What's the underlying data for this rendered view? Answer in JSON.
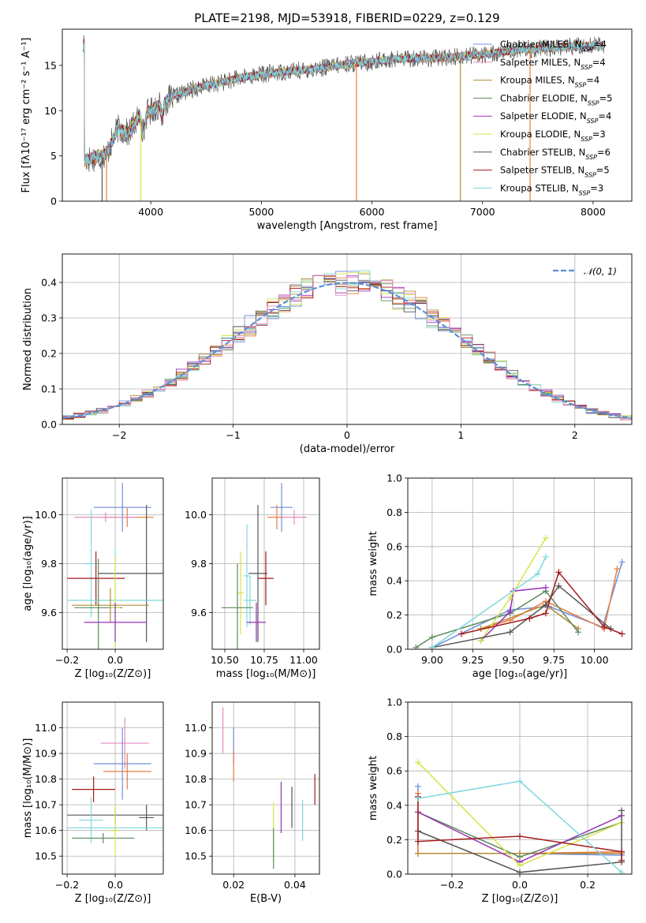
{
  "title": "PLATE=2198, MJD=53918, FIBERID=0229, z=0.129",
  "colors": {
    "chabrier_miles": "#6f8fdc",
    "salpeter_miles": "#e87d3e",
    "kroupa_miles": "#b48a36",
    "chabrier_elodie": "#5c8a5c",
    "salpeter_elodie": "#9b30b8",
    "kroupa_elodie": "#d7e34a",
    "chabrier_stelib": "#555555",
    "salpeter_stelib": "#a31b1b",
    "kroupa_stelib": "#7fd8dc",
    "pink": "#e58cc0",
    "normal": "#5b8fd6",
    "grid": "#b0b0b0"
  },
  "chart_data": [
    {
      "type": "line",
      "id": "spectrum",
      "xlabel": "wavelength [Angstrom, rest frame]",
      "ylabel": "Flux [fλ10⁻¹⁷ erg cm⁻² s⁻¹ A⁻¹]",
      "xlim": [
        3200,
        8350
      ],
      "ylim": [
        0,
        19
      ],
      "xticks": [
        "4000",
        "5000",
        "6000",
        "7000",
        "8000"
      ],
      "yticks": [
        "0",
        "5",
        "10",
        "15"
      ],
      "grid": false,
      "legend_position": "top-right",
      "continuum_points": [
        [
          3400,
          4.5
        ],
        [
          3600,
          5.2
        ],
        [
          3700,
          8.0
        ],
        [
          3800,
          7.5
        ],
        [
          3900,
          9.5
        ],
        [
          4000,
          10.0
        ],
        [
          4200,
          11.5
        ],
        [
          4400,
          12.5
        ],
        [
          4600,
          13.0
        ],
        [
          4800,
          13.6
        ],
        [
          5000,
          14.0
        ],
        [
          5200,
          14.3
        ],
        [
          5400,
          14.5
        ],
        [
          5600,
          14.8
        ],
        [
          5800,
          15.2
        ],
        [
          6000,
          15.4
        ],
        [
          6200,
          15.7
        ],
        [
          6400,
          15.8
        ],
        [
          6600,
          15.8
        ],
        [
          6800,
          16.0
        ],
        [
          7000,
          16.2
        ],
        [
          7200,
          16.5
        ],
        [
          7400,
          16.8
        ],
        [
          7600,
          16.9
        ],
        [
          7800,
          17.1
        ],
        [
          8000,
          17.2
        ],
        [
          8100,
          17.3
        ]
      ],
      "legend": [
        {
          "label": "Chabrier MILES, N",
          "sub": "SSP",
          "tail": "=4",
          "color_key": "chabrier_miles"
        },
        {
          "label": "Salpeter MILES, N",
          "sub": "SSP",
          "tail": "=4",
          "color_key": "pink"
        },
        {
          "label": "Kroupa MILES, N",
          "sub": "SSP",
          "tail": "=4",
          "color_key": "kroupa_miles"
        },
        {
          "label": "Chabrier ELODIE, N",
          "sub": "SSP",
          "tail": "=5",
          "color_key": "chabrier_elodie"
        },
        {
          "label": "Salpeter ELODIE, N",
          "sub": "SSP",
          "tail": "=4",
          "color_key": "salpeter_elodie"
        },
        {
          "label": "Kroupa ELODIE, N",
          "sub": "SSP",
          "tail": "=3",
          "color_key": "kroupa_elodie"
        },
        {
          "label": "Chabrier STELIB, N",
          "sub": "SSP",
          "tail": "=6",
          "color_key": "chabrier_stelib"
        },
        {
          "label": "Salpeter STELIB, N",
          "sub": "SSP",
          "tail": "=5",
          "color_key": "salpeter_stelib"
        },
        {
          "label": "Kroupa STELIB, N",
          "sub": "SSP",
          "tail": "=3",
          "color_key": "kroupa_stelib"
        }
      ]
    },
    {
      "type": "histogram",
      "id": "residuals",
      "xlabel": "(data-model)/error",
      "ylabel": "Normed distribution",
      "xlim": [
        -2.5,
        2.5
      ],
      "ylim": [
        0,
        0.48
      ],
      "xticks": [
        "−2",
        "−1",
        "0",
        "1",
        "2"
      ],
      "yticks": [
        "0.0",
        "0.1",
        "0.2",
        "0.3",
        "0.4"
      ],
      "grid": true,
      "bin_width": 0.1,
      "legend_label": "𝒩(0, 1)",
      "legend_position": "top-right"
    },
    {
      "type": "errorbar",
      "id": "age_vs_z",
      "xlabel": "Z [log₁₀(Z/Z⊙)]",
      "ylabel": "age  [log₁₀(age/yr)]",
      "xlim": [
        -0.22,
        0.2
      ],
      "ylim": [
        9.45,
        10.15
      ],
      "xticks": [
        "−0.2",
        "0.0"
      ],
      "yticks": [
        "9.6",
        "9.8",
        "10.0"
      ],
      "grid": true,
      "points": [
        {
          "x": 0.03,
          "xerr": 0.12,
          "y": 10.03,
          "yerr": 0.1,
          "color_key": "chabrier_miles"
        },
        {
          "x": 0.05,
          "xerr": 0.11,
          "y": 9.99,
          "yerr": 0.04,
          "color_key": "salpeter_miles"
        },
        {
          "x": -0.04,
          "xerr": 0.13,
          "y": 9.99,
          "yerr": 0.02,
          "color_key": "pink"
        },
        {
          "x": -0.1,
          "xerr": 0.03,
          "y": 9.8,
          "yerr": 0.22,
          "color_key": "kroupa_stelib"
        },
        {
          "x": 0.13,
          "xerr": 0.2,
          "y": 9.76,
          "yerr": 0.28,
          "color_key": "chabrier_stelib"
        },
        {
          "x": -0.08,
          "xerr": 0.12,
          "y": 9.74,
          "yerr": 0.11,
          "color_key": "salpeter_stelib"
        },
        {
          "x": 0.0,
          "xerr": 0.2,
          "y": 9.65,
          "yerr": 0.21,
          "color_key": "kroupa_stelib"
        },
        {
          "x": -0.02,
          "xerr": 0.16,
          "y": 9.63,
          "yerr": 0.07,
          "color_key": "kroupa_miles"
        },
        {
          "x": -0.07,
          "xerr": 0.1,
          "y": 9.62,
          "yerr": 0.2,
          "color_key": "chabrier_elodie"
        },
        {
          "x": 0.0,
          "xerr": 0.02,
          "y": 9.62,
          "yerr": 0.21,
          "color_key": "kroupa_elodie"
        },
        {
          "x": 0.0,
          "xerr": 0.13,
          "y": 9.56,
          "yerr": 0.08,
          "color_key": "salpeter_elodie"
        }
      ]
    },
    {
      "type": "errorbar",
      "id": "age_vs_mass",
      "xlabel": "mass [log₁₀(M/M⊙)]",
      "ylabel": "",
      "xlim": [
        10.42,
        11.1
      ],
      "ylim": [
        9.45,
        10.15
      ],
      "xticks": [
        "10.50",
        "10.75",
        "11.00"
      ],
      "yticks": [
        "9.6",
        "9.8",
        "10.0"
      ],
      "grid": true,
      "points": [
        {
          "x": 10.86,
          "xerr": 0.07,
          "y": 10.03,
          "yerr": 0.1,
          "color_key": "chabrier_miles"
        },
        {
          "x": 10.83,
          "xerr": 0.06,
          "y": 9.99,
          "yerr": 0.05,
          "color_key": "salpeter_miles"
        },
        {
          "x": 10.94,
          "xerr": 0.08,
          "y": 9.99,
          "yerr": 0.03,
          "color_key": "pink"
        },
        {
          "x": 10.71,
          "xerr": 0.06,
          "y": 9.76,
          "yerr": 0.28,
          "color_key": "chabrier_stelib"
        },
        {
          "x": 10.76,
          "xerr": 0.05,
          "y": 9.74,
          "yerr": 0.11,
          "color_key": "salpeter_stelib"
        },
        {
          "x": 10.64,
          "xerr": 0.02,
          "y": 9.75,
          "yerr": 0.21,
          "color_key": "kroupa_stelib"
        },
        {
          "x": 10.66,
          "xerr": 0.04,
          "y": 9.65,
          "yerr": 0.1,
          "color_key": "kroupa_stelib"
        },
        {
          "x": 10.6,
          "xerr": 0.02,
          "y": 9.68,
          "yerr": 0.17,
          "color_key": "kroupa_elodie"
        },
        {
          "x": 10.58,
          "xerr": 0.1,
          "y": 9.62,
          "yerr": 0.18,
          "color_key": "chabrier_elodie"
        },
        {
          "x": 10.7,
          "xerr": 0.06,
          "y": 9.56,
          "yerr": 0.08,
          "color_key": "salpeter_elodie"
        }
      ]
    },
    {
      "type": "line",
      "id": "weight_vs_age",
      "xlabel": "age  [log₁₀(age/yr)]",
      "ylabel": "mass weight",
      "xlim": [
        8.85,
        10.23
      ],
      "ylim": [
        0,
        1.0
      ],
      "xticks": [
        "9.00",
        "9.25",
        "9.50",
        "9.75",
        "10.00"
      ],
      "yticks": [
        "0.0",
        "0.2",
        "0.4",
        "0.6",
        "0.8",
        "1.0"
      ],
      "grid": true,
      "series": [
        {
          "color_key": "chabrier_miles",
          "x": [
            9.0,
            9.48,
            9.72,
            10.05,
            10.17
          ],
          "y": [
            0.01,
            0.23,
            0.25,
            0.13,
            0.51
          ]
        },
        {
          "color_key": "salpeter_miles",
          "x": [
            9.3,
            9.48,
            9.7,
            10.06,
            10.14
          ],
          "y": [
            0.12,
            0.17,
            0.28,
            0.12,
            0.47
          ]
        },
        {
          "color_key": "kroupa_miles",
          "x": [
            9.3,
            9.7,
            9.9
          ],
          "y": [
            0.12,
            0.26,
            0.12
          ]
        },
        {
          "color_key": "chabrier_elodie",
          "x": [
            8.9,
            9.0,
            9.48,
            9.7,
            9.9
          ],
          "y": [
            0.01,
            0.07,
            0.21,
            0.34,
            0.1
          ]
        },
        {
          "color_key": "salpeter_elodie",
          "x": [
            9.3,
            9.48,
            9.5,
            9.7
          ],
          "y": [
            0.05,
            0.22,
            0.34,
            0.36
          ]
        },
        {
          "color_key": "kroupa_elodie",
          "x": [
            9.3,
            9.48,
            9.7
          ],
          "y": [
            0.05,
            0.3,
            0.65
          ]
        },
        {
          "color_key": "chabrier_stelib",
          "x": [
            9.0,
            9.48,
            9.7,
            9.78,
            10.1
          ],
          "y": [
            0.01,
            0.1,
            0.26,
            0.37,
            0.12
          ]
        },
        {
          "color_key": "salpeter_stelib",
          "x": [
            9.18,
            9.6,
            9.7,
            9.78,
            10.06,
            10.17
          ],
          "y": [
            0.09,
            0.18,
            0.21,
            0.45,
            0.13,
            0.09
          ]
        },
        {
          "color_key": "kroupa_stelib",
          "x": [
            9.0,
            9.65,
            9.7
          ],
          "y": [
            0.01,
            0.44,
            0.54
          ]
        }
      ]
    },
    {
      "type": "errorbar",
      "id": "mass_vs_z",
      "xlabel": "Z [log₁₀(Z/Z⊙)]",
      "ylabel": "mass [log₁₀(M/M⊙)]",
      "xlim": [
        -0.22,
        0.2
      ],
      "ylim": [
        10.43,
        11.1
      ],
      "xticks": [
        "−0.2",
        "0.0"
      ],
      "yticks": [
        "10.5",
        "10.6",
        "10.7",
        "10.8",
        "10.9",
        "11.0"
      ],
      "grid": true,
      "points": [
        {
          "x": 0.04,
          "xerr": 0.1,
          "y": 10.94,
          "yerr": 0.1,
          "color_key": "pink"
        },
        {
          "x": 0.03,
          "xerr": 0.12,
          "y": 10.86,
          "yerr": 0.14,
          "color_key": "chabrier_miles"
        },
        {
          "x": 0.05,
          "xerr": 0.1,
          "y": 10.83,
          "yerr": 0.07,
          "color_key": "salpeter_miles"
        },
        {
          "x": -0.09,
          "xerr": 0.09,
          "y": 10.76,
          "yerr": 0.05,
          "color_key": "salpeter_stelib"
        },
        {
          "x": 0.0,
          "xerr": 0.2,
          "y": 10.66,
          "yerr": 0.03,
          "color_key": "chabrier_stelib"
        },
        {
          "x": 0.13,
          "xerr": 0.03,
          "y": 10.65,
          "yerr": 0.05,
          "color_key": "chabrier_stelib"
        },
        {
          "x": -0.1,
          "xerr": 0.05,
          "y": 10.64,
          "yerr": 0.09,
          "color_key": "kroupa_stelib"
        },
        {
          "x": 0.0,
          "xerr": 0.2,
          "y": 10.61,
          "yerr": 0.03,
          "color_key": "kroupa_stelib"
        },
        {
          "x": -0.05,
          "xerr": 0.13,
          "y": 10.57,
          "yerr": 0.02,
          "color_key": "chabrier_elodie"
        },
        {
          "x": 0.0,
          "xerr": 0.02,
          "y": 10.6,
          "yerr": 0.1,
          "color_key": "kroupa_elodie"
        }
      ]
    },
    {
      "type": "errorbar",
      "id": "mass_vs_ebv",
      "xlabel": "E(B-V)",
      "ylabel": "",
      "xlim": [
        0.013,
        0.048
      ],
      "ylim": [
        10.43,
        11.1
      ],
      "xticks": [
        "0.02",
        "0.04"
      ],
      "yticks": [
        "10.5",
        "10.6",
        "10.7",
        "10.8",
        "10.9",
        "11.0"
      ],
      "grid": true,
      "points": [
        {
          "x": 0.0165,
          "y": 10.99,
          "yerr": 0.09,
          "color_key": "pink"
        },
        {
          "x": 0.02,
          "y": 10.93,
          "yerr": 0.07,
          "color_key": "chabrier_miles"
        },
        {
          "x": 0.02,
          "y": 10.85,
          "yerr": 0.06,
          "color_key": "salpeter_miles"
        },
        {
          "x": 0.033,
          "y": 10.6,
          "yerr": 0.11,
          "color_key": "kroupa_elodie"
        },
        {
          "x": 0.033,
          "y": 10.53,
          "yerr": 0.08,
          "color_key": "chabrier_elodie"
        },
        {
          "x": 0.0355,
          "y": 10.69,
          "yerr": 0.1,
          "color_key": "salpeter_elodie"
        },
        {
          "x": 0.039,
          "y": 10.69,
          "yerr": 0.08,
          "color_key": "chabrier_stelib"
        },
        {
          "x": 0.0425,
          "y": 10.64,
          "yerr": 0.08,
          "color_key": "kroupa_stelib"
        },
        {
          "x": 0.0465,
          "y": 10.76,
          "yerr": 0.06,
          "color_key": "salpeter_stelib"
        }
      ]
    },
    {
      "type": "line",
      "id": "weight_vs_z",
      "xlabel": "Z [log₁₀(Z/Z⊙)]",
      "ylabel": "mass weight",
      "xlim": [
        -0.33,
        0.33
      ],
      "ylim": [
        0,
        1.0
      ],
      "xticks": [
        "−0.2",
        "0.0",
        "0.2"
      ],
      "yticks": [
        "0.0",
        "0.2",
        "0.4",
        "0.6",
        "0.8",
        "1.0"
      ],
      "grid": true,
      "series": [
        {
          "color_key": "chabrier_miles",
          "x": [
            -0.3,
            -0.3,
            0.0,
            0.3
          ],
          "y": [
            0.51,
            0.12,
            0.12,
            0.11
          ]
        },
        {
          "color_key": "salpeter_miles",
          "x": [
            -0.3,
            -0.3,
            0.0,
            0.3
          ],
          "y": [
            0.47,
            0.12,
            0.12,
            0.13
          ]
        },
        {
          "color_key": "kroupa_miles",
          "x": [
            -0.3,
            0.0,
            0.3
          ],
          "y": [
            0.12,
            0.12,
            0.12
          ]
        },
        {
          "color_key": "chabrier_elodie",
          "x": [
            -0.3,
            0.0,
            0.3
          ],
          "y": [
            0.36,
            0.1,
            0.3
          ]
        },
        {
          "color_key": "salpeter_elodie",
          "x": [
            -0.3,
            0.0,
            0.3
          ],
          "y": [
            0.36,
            0.07,
            0.34
          ]
        },
        {
          "color_key": "kroupa_elodie",
          "x": [
            -0.3,
            0.0,
            0.3
          ],
          "y": [
            0.65,
            0.05,
            0.3
          ]
        },
        {
          "color_key": "chabrier_stelib",
          "x": [
            -0.3,
            0.0,
            0.3,
            0.3
          ],
          "y": [
            0.25,
            0.01,
            0.07,
            0.37
          ]
        },
        {
          "color_key": "salpeter_stelib",
          "x": [
            -0.3,
            -0.3,
            0.0,
            0.3,
            0.3
          ],
          "y": [
            0.45,
            0.19,
            0.22,
            0.13,
            0.08
          ]
        },
        {
          "color_key": "kroupa_stelib",
          "x": [
            -0.3,
            0.0,
            0.3
          ],
          "y": [
            0.44,
            0.54,
            0.01
          ]
        }
      ]
    }
  ]
}
